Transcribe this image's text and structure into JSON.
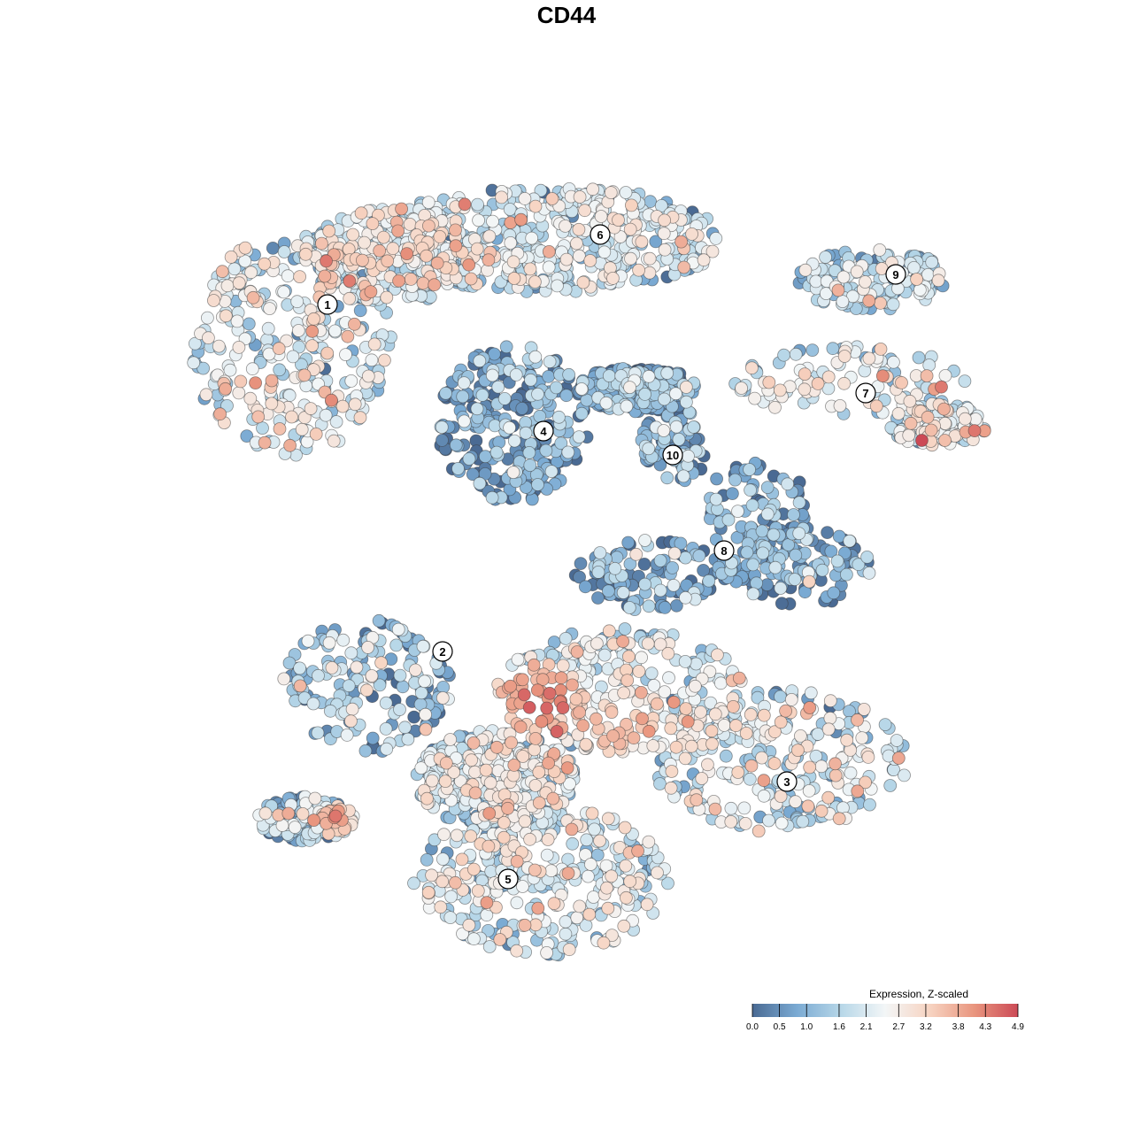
{
  "title": "CD44",
  "chart_data": {
    "type": "scatter",
    "title": "CD44",
    "color_scale": {
      "title": "Expression, Z-scaled",
      "min": 0.0,
      "max": 4.9,
      "ticks": [
        "0.0",
        "0.5",
        "1.0",
        "1.6",
        "2.1",
        "2.7",
        "3.2",
        "3.8",
        "4.3",
        "4.9"
      ],
      "colors": [
        "#4a6a93",
        "#7aaad3",
        "#b7d7e8",
        "#f3f6f7",
        "#f7d4c2",
        "#e9967f",
        "#cc4a56"
      ]
    },
    "clusters": [
      {
        "label": "1",
        "mean_expression": 2.3
      },
      {
        "label": "2",
        "mean_expression": 1.4
      },
      {
        "label": "3",
        "mean_expression": 2.3
      },
      {
        "label": "4",
        "mean_expression": 0.8
      },
      {
        "label": "5",
        "mean_expression": 2.2
      },
      {
        "label": "6",
        "mean_expression": 2.0
      },
      {
        "label": "7",
        "mean_expression": 2.3
      },
      {
        "label": "8",
        "mean_expression": 0.9
      },
      {
        "label": "9",
        "mean_expression": 1.9
      },
      {
        "label": "10",
        "mean_expression": 1.1
      }
    ],
    "grid": false,
    "axes": "none",
    "legend_position": "bottom-right"
  }
}
